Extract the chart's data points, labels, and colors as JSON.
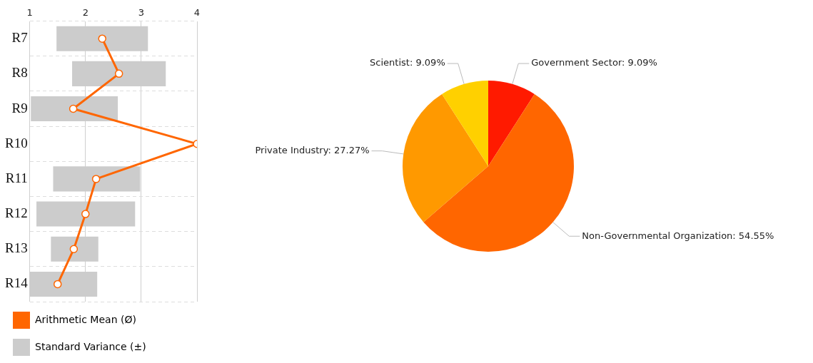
{
  "chart_data": [
    {
      "type": "bar",
      "orientation": "horizontal",
      "categories": [
        "R7",
        "R8",
        "R9",
        "R10",
        "R11",
        "R12",
        "R13",
        "R14"
      ],
      "xlim": [
        1,
        4
      ],
      "xticks": [
        1,
        2,
        3,
        4
      ],
      "grid": true,
      "legend": "bottom left",
      "marker": "circle",
      "series": [
        {
          "name": "Arithmetic Mean (Ø)",
          "type": "line",
          "color": "#ff6600",
          "values": [
            2.3,
            2.6,
            1.78,
            4.0,
            2.19,
            2.0,
            1.79,
            1.5
          ]
        },
        {
          "name": "Standard Variance (±)",
          "type": "bar",
          "color": "#cccccc",
          "base": [
            1.48,
            1.76,
            1.02,
            null,
            1.42,
            1.12,
            1.38,
            1.0
          ],
          "values": [
            1.64,
            1.68,
            1.56,
            null,
            1.56,
            1.77,
            0.85,
            1.21
          ]
        }
      ]
    },
    {
      "type": "pie",
      "categories": [
        "Government Sector",
        "Non-Governmental Organization",
        "Private Industry",
        "Scientist"
      ],
      "values": [
        9.09,
        54.55,
        27.27,
        9.09
      ],
      "colors": [
        "#ff1a00",
        "#ff6600",
        "#ff9900",
        "#ffd000"
      ],
      "value_labels": [
        "9.09%",
        "54.55%",
        "27.27%",
        "9.09%"
      ]
    }
  ]
}
